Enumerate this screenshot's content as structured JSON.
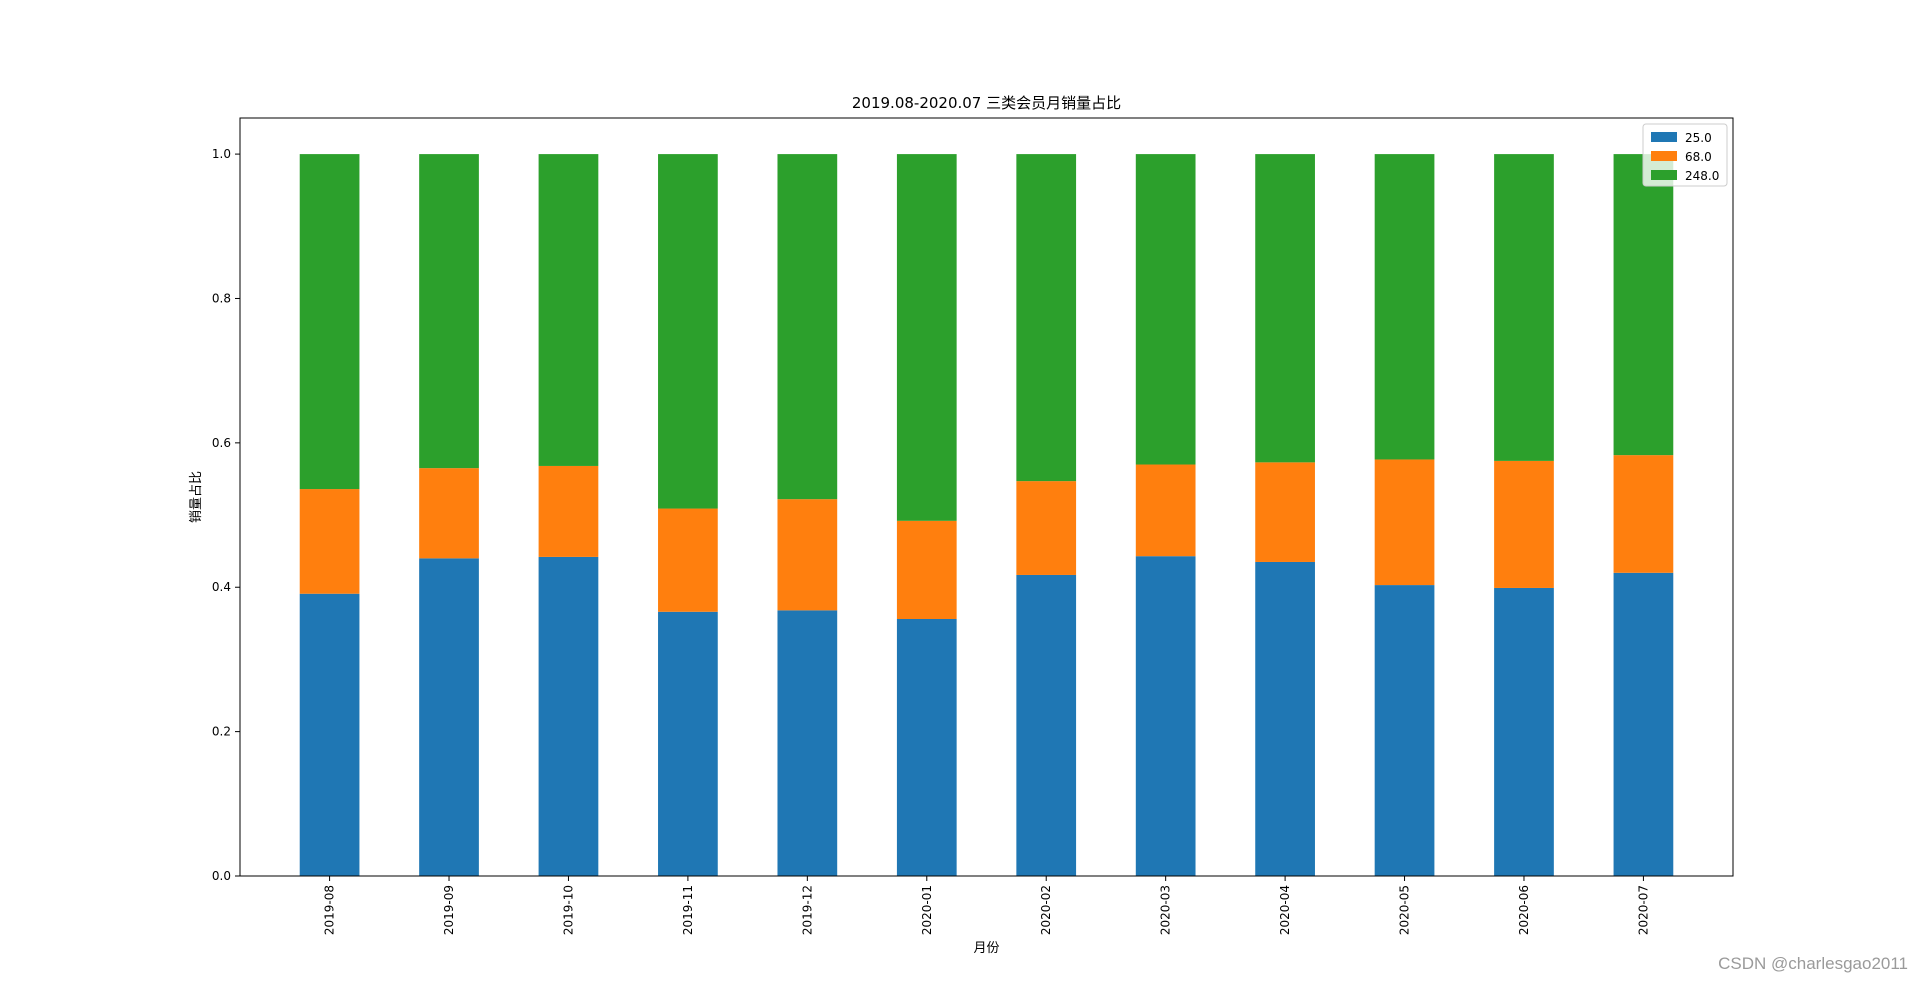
{
  "watermark": "CSDN @charlesgao2011",
  "chart_data": {
    "type": "bar",
    "stacked": true,
    "title": "2019.08-2020.07 三类会员月销量占比",
    "xlabel": "月份",
    "ylabel": "销量占比",
    "ylim": [
      0,
      1.05
    ],
    "yticks": [
      "0.0",
      "0.2",
      "0.4",
      "0.6",
      "0.8",
      "1.0"
    ],
    "grid": false,
    "legend_position": "top-right",
    "categories": [
      "2019-08",
      "2019-09",
      "2019-10",
      "2019-11",
      "2019-12",
      "2020-01",
      "2020-02",
      "2020-03",
      "2020-04",
      "2020-05",
      "2020-06",
      "2020-07"
    ],
    "series": [
      {
        "name": "25.0",
        "color": "#1f77b4",
        "values": [
          0.391,
          0.44,
          0.442,
          0.366,
          0.368,
          0.356,
          0.417,
          0.443,
          0.435,
          0.403,
          0.399,
          0.42
        ]
      },
      {
        "name": "68.0",
        "color": "#ff7f0e",
        "values": [
          0.145,
          0.125,
          0.126,
          0.143,
          0.154,
          0.136,
          0.13,
          0.127,
          0.138,
          0.174,
          0.176,
          0.163
        ]
      },
      {
        "name": "248.0",
        "color": "#2ca02c",
        "values": [
          0.464,
          0.435,
          0.432,
          0.491,
          0.478,
          0.508,
          0.453,
          0.43,
          0.427,
          0.423,
          0.425,
          0.417
        ]
      }
    ]
  }
}
